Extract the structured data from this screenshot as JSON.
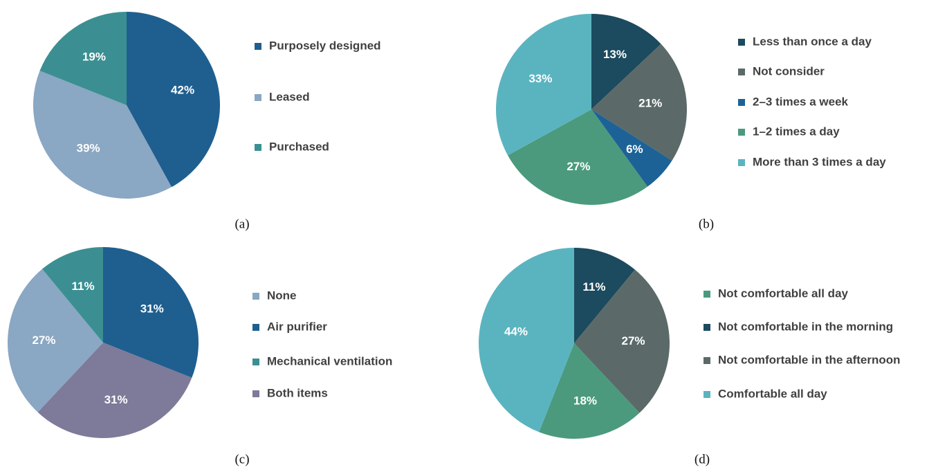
{
  "chart_data": [
    {
      "type": "pie",
      "caption": "(a)",
      "categories": [
        "Purposely designed",
        "Leased",
        "Purchased"
      ],
      "values": [
        42,
        39,
        19
      ],
      "value_labels": [
        "42%",
        "39%",
        "19%"
      ],
      "colors": [
        "#1f5f8f",
        "#8aa7c3",
        "#3b8f92"
      ]
    },
    {
      "type": "pie",
      "caption": "(b)",
      "categories": [
        "Less than once a day",
        "Not consider",
        "2–3 times a week",
        "1–2 times a day",
        "More than 3 times a day"
      ],
      "values": [
        13,
        21,
        6,
        27,
        33
      ],
      "value_labels": [
        "13%",
        "21%",
        "6%",
        "27%",
        "33%"
      ],
      "colors": [
        "#1c4a5e",
        "#5b6a69",
        "#1d6296",
        "#4b9a7d",
        "#5ab4c0"
      ]
    },
    {
      "type": "pie",
      "caption": "(c)",
      "categories": [
        "None",
        "Air purifier",
        "Mechanical ventilation",
        "Both items"
      ],
      "values": [
        27,
        31,
        11,
        31
      ],
      "value_labels": [
        "27%",
        "31%",
        "11%",
        "31%"
      ],
      "colors": [
        "#8aa7c3",
        "#1f5f8f",
        "#3b8f92",
        "#7e7a99"
      ]
    },
    {
      "type": "pie",
      "caption": "(d)",
      "categories": [
        "Not comfortable all day",
        "Not comfortable in the morning",
        "Not comfortable in the afternoon",
        "Comfortable all day"
      ],
      "values": [
        18,
        11,
        27,
        44
      ],
      "value_labels": [
        "18%",
        "11%",
        "27%",
        "44%"
      ],
      "colors": [
        "#4b9a7d",
        "#1c4a5e",
        "#5b6a69",
        "#5ab4c0"
      ]
    }
  ]
}
